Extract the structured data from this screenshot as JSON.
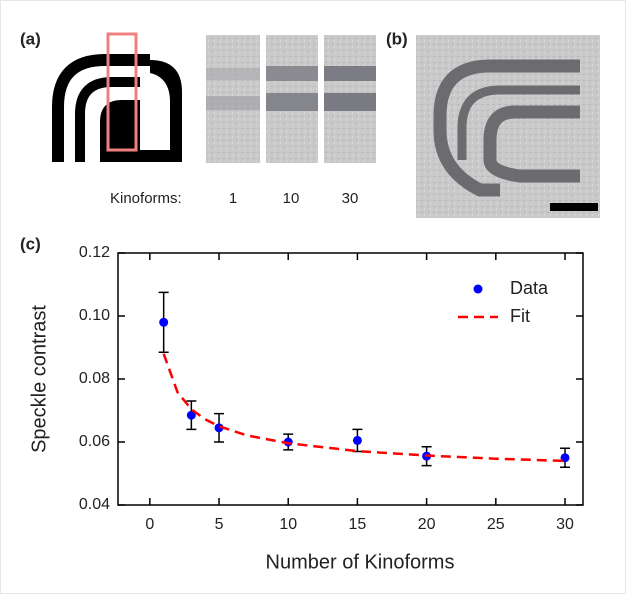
{
  "panels": {
    "a": {
      "label": "(a)",
      "row_label": "Kinoforms:",
      "columns": [
        "1",
        "10",
        "30"
      ]
    },
    "b": {
      "label": "(b)"
    }
  },
  "chart_data": {
    "type": "scatter",
    "panel_label": "(c)",
    "x_label": "Number of Kinoforms",
    "y_label": "Speckle contrast",
    "xlim": [
      -2.3,
      31.3
    ],
    "xticks": [
      0,
      5,
      10,
      15,
      20,
      25,
      30
    ],
    "ylim": [
      0.04,
      0.12
    ],
    "yticks": [
      0.04,
      0.06,
      0.08,
      {
        "value": 0.1,
        "label": "0.10"
      },
      0.12
    ],
    "legend": "upper right",
    "series": [
      {
        "name": "Data",
        "type": "scatter",
        "color": "#0000ff",
        "x": [
          1,
          3,
          5,
          10,
          15,
          20,
          30
        ],
        "values": [
          0.098,
          0.0685,
          0.0645,
          0.06,
          0.0605,
          0.0555,
          0.055
        ],
        "errors": [
          0.0095,
          0.0045,
          0.0045,
          0.0025,
          0.0035,
          0.003,
          0.003
        ]
      },
      {
        "name": "Fit",
        "type": "line",
        "color": "#ff0000",
        "dashed": true,
        "x": [
          1,
          2,
          3,
          4,
          5,
          7,
          10,
          15,
          20,
          25,
          30
        ],
        "values": [
          0.088,
          0.0758,
          0.0704,
          0.0672,
          0.065,
          0.0621,
          0.0596,
          0.0571,
          0.0557,
          0.0547,
          0.054
        ]
      }
    ]
  }
}
